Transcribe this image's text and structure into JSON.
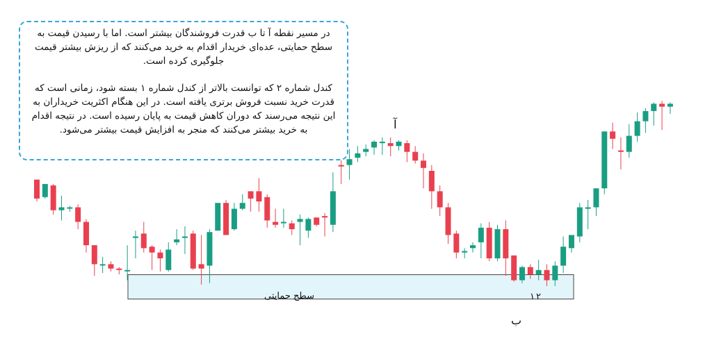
{
  "note": {
    "paragraph1": "در مسیر نقطه آ تا ب قدرت فروشندگان بیشتر است. اما با رسیدن قیمت به سطح حمایتی، عده‌ای خریدار اقدام به خرید می‌کنند که از ریزش بیشتر قیمت جلوگیری کرده است.",
    "paragraph2": "کندل شماره ۲ که توانست بالاتر از کندل شماره ۱ بسته شود، زمانی است که قدرت خرید نسبت فروش برتری یافته است. در این هنگام اکثریت خریداران به این نتیجه می‌رسند که دوران کاهش قیمت به پایان رسیده است. در نتیجه اقدام به خرید بیشتر می‌کنند که منجر به افزایش قیمت بیشتر می‌شود."
  },
  "labels": {
    "point_a": "آ",
    "point_b": "ب",
    "candle_1": "۱",
    "candle_2": "۲",
    "support_zone": "سطح حمایتی"
  },
  "colors": {
    "bull": "#1a9e83",
    "bear": "#e9404f",
    "support_fill": "#e2f5fb",
    "support_border": "#444444",
    "note_border": "#3aa3dc"
  },
  "chart_data": {
    "type": "candlestick",
    "title": "",
    "xlabel": "",
    "ylabel": "",
    "grid": false,
    "support_zone": [
      6.4,
      8.8
    ],
    "candles": [
      [
        74,
        74,
        61,
        59
      ],
      [
        62,
        71,
        71,
        61
      ],
      [
        70,
        71,
        53,
        50
      ],
      [
        53,
        63,
        55,
        46
      ],
      [
        55,
        56,
        55,
        52
      ],
      [
        55,
        57,
        45,
        40
      ],
      [
        45,
        47,
        29,
        24
      ],
      [
        29,
        29,
        16,
        8
      ],
      [
        16,
        21,
        16,
        10
      ],
      [
        16,
        18,
        13,
        11
      ],
      [
        13,
        14,
        12,
        9
      ],
      [
        12,
        29,
        12,
        5
      ],
      [
        34,
        39,
        35,
        20
      ],
      [
        37,
        45,
        27,
        24
      ],
      [
        28,
        29,
        24,
        12
      ],
      [
        24,
        26,
        20,
        11
      ],
      [
        12,
        31,
        26,
        11
      ],
      [
        31,
        40,
        33,
        29
      ],
      [
        34,
        42,
        35,
        23
      ],
      [
        37,
        39,
        13,
        12
      ],
      [
        16,
        36,
        13,
        2
      ],
      [
        15,
        40,
        38,
        3
      ],
      [
        39,
        58,
        58,
        41
      ],
      [
        58,
        60,
        36,
        37
      ],
      [
        40,
        58,
        54,
        39
      ],
      [
        54,
        64,
        58,
        53
      ],
      [
        66,
        66,
        61,
        52
      ],
      [
        66,
        75,
        59,
        52
      ],
      [
        62,
        64,
        46,
        41
      ],
      [
        45,
        54,
        43,
        41
      ],
      [
        45,
        54,
        45,
        41
      ],
      [
        44,
        46,
        40,
        36
      ],
      [
        45,
        50,
        47,
        29
      ],
      [
        39,
        48,
        47,
        34
      ],
      [
        48,
        48,
        43,
        42
      ],
      [
        49,
        51,
        48,
        35
      ],
      [
        43,
        79,
        66,
        38
      ],
      [
        84,
        92,
        83,
        71
      ],
      [
        84,
        95,
        88,
        74
      ],
      [
        89,
        97,
        92,
        86
      ],
      [
        93,
        98,
        95,
        90
      ],
      [
        96,
        101,
        100,
        91
      ],
      [
        99,
        103,
        100,
        91
      ],
      [
        99,
        103,
        97,
        90
      ],
      [
        97,
        101,
        100,
        94
      ],
      [
        99,
        101,
        93,
        86
      ],
      [
        93,
        97,
        87,
        85
      ],
      [
        87,
        92,
        82,
        68
      ],
      [
        80,
        84,
        66,
        54
      ],
      [
        66,
        70,
        55,
        49
      ],
      [
        55,
        58,
        36,
        30
      ],
      [
        37,
        39,
        24,
        20
      ],
      [
        24,
        27,
        25,
        20
      ],
      [
        27,
        31,
        29,
        24
      ],
      [
        31,
        44,
        41,
        20
      ],
      [
        41,
        45,
        20,
        18
      ],
      [
        20,
        43,
        40,
        18
      ],
      [
        40,
        46,
        20,
        8
      ],
      [
        22,
        22,
        5,
        4
      ],
      [
        5,
        15,
        14,
        3
      ],
      [
        14,
        16,
        9,
        6
      ],
      [
        9,
        19,
        12,
        5
      ],
      [
        12,
        16,
        5,
        1
      ],
      [
        5,
        18,
        15,
        1
      ],
      [
        15,
        35,
        28,
        10
      ],
      [
        27,
        35,
        36,
        24
      ],
      [
        35,
        58,
        55,
        31
      ],
      [
        54,
        60,
        55,
        40
      ],
      [
        55,
        68,
        68,
        49
      ],
      [
        68,
        107,
        107,
        64
      ],
      [
        107,
        113,
        102,
        95
      ],
      [
        94,
        103,
        93,
        81
      ],
      [
        93,
        112,
        104,
        89
      ],
      [
        104,
        120,
        114,
        100
      ],
      [
        114,
        123,
        121,
        106
      ],
      [
        121,
        127,
        126,
        111
      ],
      [
        126,
        128,
        124,
        108
      ],
      [
        124,
        127,
        126,
        119
      ]
    ]
  }
}
